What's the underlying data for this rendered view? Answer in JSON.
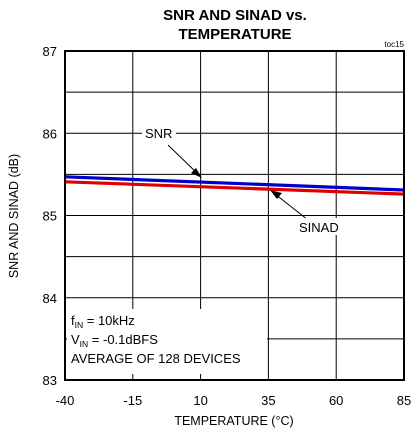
{
  "chart_data": {
    "type": "line",
    "title": [
      "SNR AND SINAD vs.",
      "TEMPERATURE"
    ],
    "figure_ref": "toc15",
    "xlabel": "TEMPERATURE (°C)",
    "ylabel": "SNR AND SINAD (dB)",
    "x_ticks": [
      -40,
      -15,
      10,
      35,
      60,
      85
    ],
    "y_ticks": [
      83,
      84,
      85,
      86,
      87
    ],
    "xlim": [
      -40,
      85
    ],
    "ylim": [
      83,
      87
    ],
    "grid": true,
    "series": [
      {
        "name": "SNR",
        "color": "#0000cc",
        "x": [
          -40,
          85
        ],
        "y": [
          85.47,
          85.31
        ]
      },
      {
        "name": "SINAD",
        "color": "#e00000",
        "x": [
          -40,
          85
        ],
        "y": [
          85.41,
          85.26
        ]
      }
    ],
    "annotations": [
      {
        "text": "SNR",
        "series": "SNR",
        "at_x": 10
      },
      {
        "text": "SINAD",
        "series": "SINAD",
        "at_x": 35
      }
    ],
    "conditions": {
      "f_main": "f",
      "f_sub": "IN",
      "f_value": " = 10kHz",
      "v_main": "V",
      "v_sub": "IN",
      "v_value": " = -0.1dBFS",
      "average": "AVERAGE OF 128 DEVICES"
    }
  }
}
